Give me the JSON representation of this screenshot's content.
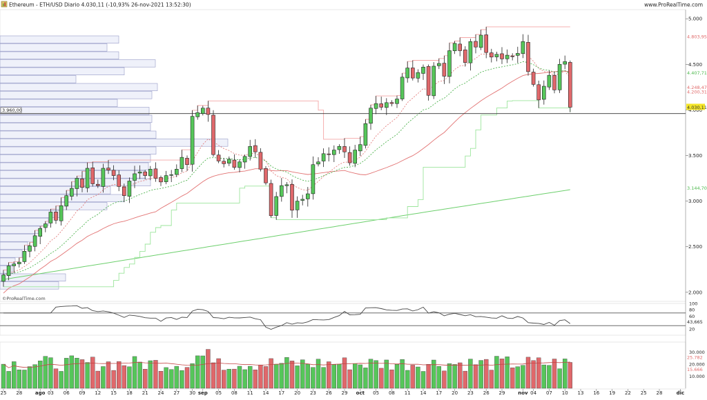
{
  "header": {
    "title": "Ethereum - ETH/USD Diario 4.030,11 (-10,93% 26-nov-2021 13:52:30)",
    "brand": "www.ProRealTime.com"
  },
  "watermark": "©ProRealTime.com",
  "colors": {
    "up": "#56c65a",
    "down": "#e0686b",
    "ma_short": "#e27272",
    "ma_long": "#6ccf6c",
    "ma_dashed_red": "#e07070",
    "ma_dashed_green": "#3aaa3a",
    "oscillator": "#444444",
    "volume_ma": "#c44444",
    "volume_profile_fill": "#eef0fa",
    "volume_profile_border": "#8a8fc0",
    "level_line": "#333333"
  },
  "chart_data": [
    {
      "type": "candlestick",
      "title": "Ethereum - ETH/USD Diario 4.030,11 (-10,93% 26-nov-2021 13:52:30)",
      "xlabel": "",
      "ylabel": "",
      "ylim": [
        1900,
        5100
      ],
      "y_ticks": [
        "5.000",
        "4.500",
        "4.000",
        "3.500",
        "3.000",
        "2.500",
        "2.000"
      ],
      "y_tick_values": [
        5000,
        4500,
        4000,
        3500,
        3000,
        2500,
        2000
      ],
      "x_ticks": [
        "25",
        "28",
        "ago",
        "03",
        "06",
        "09",
        "12",
        "15",
        "18",
        "21",
        "24",
        "27",
        "30",
        "sep",
        "05",
        "08",
        "11",
        "14",
        "17",
        "20",
        "23",
        "26",
        "29",
        "oct",
        "05",
        "08",
        "11",
        "14",
        "17",
        "20",
        "23",
        "26",
        "29",
        "nov",
        "04",
        "07",
        "10",
        "13",
        "16",
        "19",
        "22",
        "25",
        "28",
        "dic"
      ],
      "x_tick_day_index": [
        0,
        3,
        7,
        9,
        12,
        15,
        18,
        21,
        24,
        27,
        30,
        33,
        36,
        38,
        41,
        44,
        47,
        50,
        53,
        56,
        59,
        62,
        65,
        68,
        71,
        74,
        77,
        80,
        83,
        86,
        89,
        92,
        95,
        99,
        101,
        104,
        107,
        110,
        113,
        116,
        119,
        122,
        125,
        129
      ],
      "date_range": [
        "2021-07-25",
        "2021-11-26"
      ],
      "closes": [
        2190,
        2290,
        2310,
        2330,
        2450,
        2510,
        2620,
        2700,
        2750,
        2880,
        2790,
        2950,
        3060,
        3140,
        3250,
        3150,
        3360,
        3190,
        3170,
        3360,
        3340,
        3280,
        3160,
        3060,
        3220,
        3300,
        3320,
        3280,
        3350,
        3250,
        3210,
        3280,
        3290,
        3350,
        3480,
        3400,
        3930,
        3970,
        4020,
        3950,
        3510,
        3440,
        3410,
        3460,
        3370,
        3430,
        3490,
        3600,
        3540,
        3350,
        3200,
        2840,
        3050,
        3170,
        3180,
        2900,
        3000,
        3020,
        3080,
        3400,
        3430,
        3520,
        3510,
        3560,
        3600,
        3540,
        3420,
        3560,
        3620,
        3850,
        4020,
        4070,
        4030,
        4080,
        4070,
        4120,
        4360,
        4460,
        4350,
        4410,
        4470,
        4160,
        4480,
        4510,
        4370,
        4650,
        4730,
        4650,
        4520,
        4750,
        4690,
        4820,
        4630,
        4580,
        4610,
        4560,
        4600,
        4590,
        4620,
        4750,
        4420,
        4280,
        4110,
        4260,
        4380,
        4220,
        4500,
        4530,
        4030
      ],
      "last_price": "4.030,11",
      "level_line": {
        "value": 3960,
        "label": "3.960,00"
      },
      "price_labels": [
        {
          "text": "4.803,95",
          "value": 4804,
          "color": "#e06a6a"
        },
        {
          "text": "4.407,71",
          "value": 4408,
          "color": "#4cb84c"
        },
        {
          "text": "4.248,47",
          "value": 4248,
          "color": "#e06a6a"
        },
        {
          "text": "4.200,31",
          "value": 4200,
          "color": "#e06a6a"
        },
        {
          "text": "4.030,11",
          "value": 4030,
          "color": "#333333",
          "highlight": "#f5e628"
        },
        {
          "text": "3.144,70",
          "value": 3145,
          "color": "#4cb84c"
        }
      ],
      "series": [
        {
          "name": "",
          "kind": "sma200",
          "last": 3144.7
        },
        {
          "name": "",
          "kind": "sma50",
          "last": 4200.31
        },
        {
          "name": "",
          "kind": "ema20",
          "last": 4407.71
        },
        {
          "name": "",
          "kind": "ema10",
          "last": 4248.47
        }
      ],
      "volume_profile_note": "horizontal volume-by-price bars on the left"
    },
    {
      "type": "line",
      "title": "",
      "ylim": [
        0,
        100
      ],
      "y_ticks": [
        "100",
        "80",
        "60",
        "20"
      ],
      "y_tick_values": [
        100,
        80,
        60,
        20
      ],
      "overbought": 70,
      "oversold": 30,
      "last_value": "43,665"
    },
    {
      "type": "bar",
      "title": "",
      "ylim": [
        0,
        36000
      ],
      "y_ticks": [
        "30.000",
        "20.000",
        "10.000"
      ],
      "y_tick_values": [
        30000,
        20000,
        10000
      ],
      "labels": [
        {
          "text": "25.782",
          "value": 25782,
          "color": "#e06a6a"
        },
        {
          "text": "15.666",
          "value": 15666,
          "color": "#e06a6a"
        }
      ]
    }
  ]
}
